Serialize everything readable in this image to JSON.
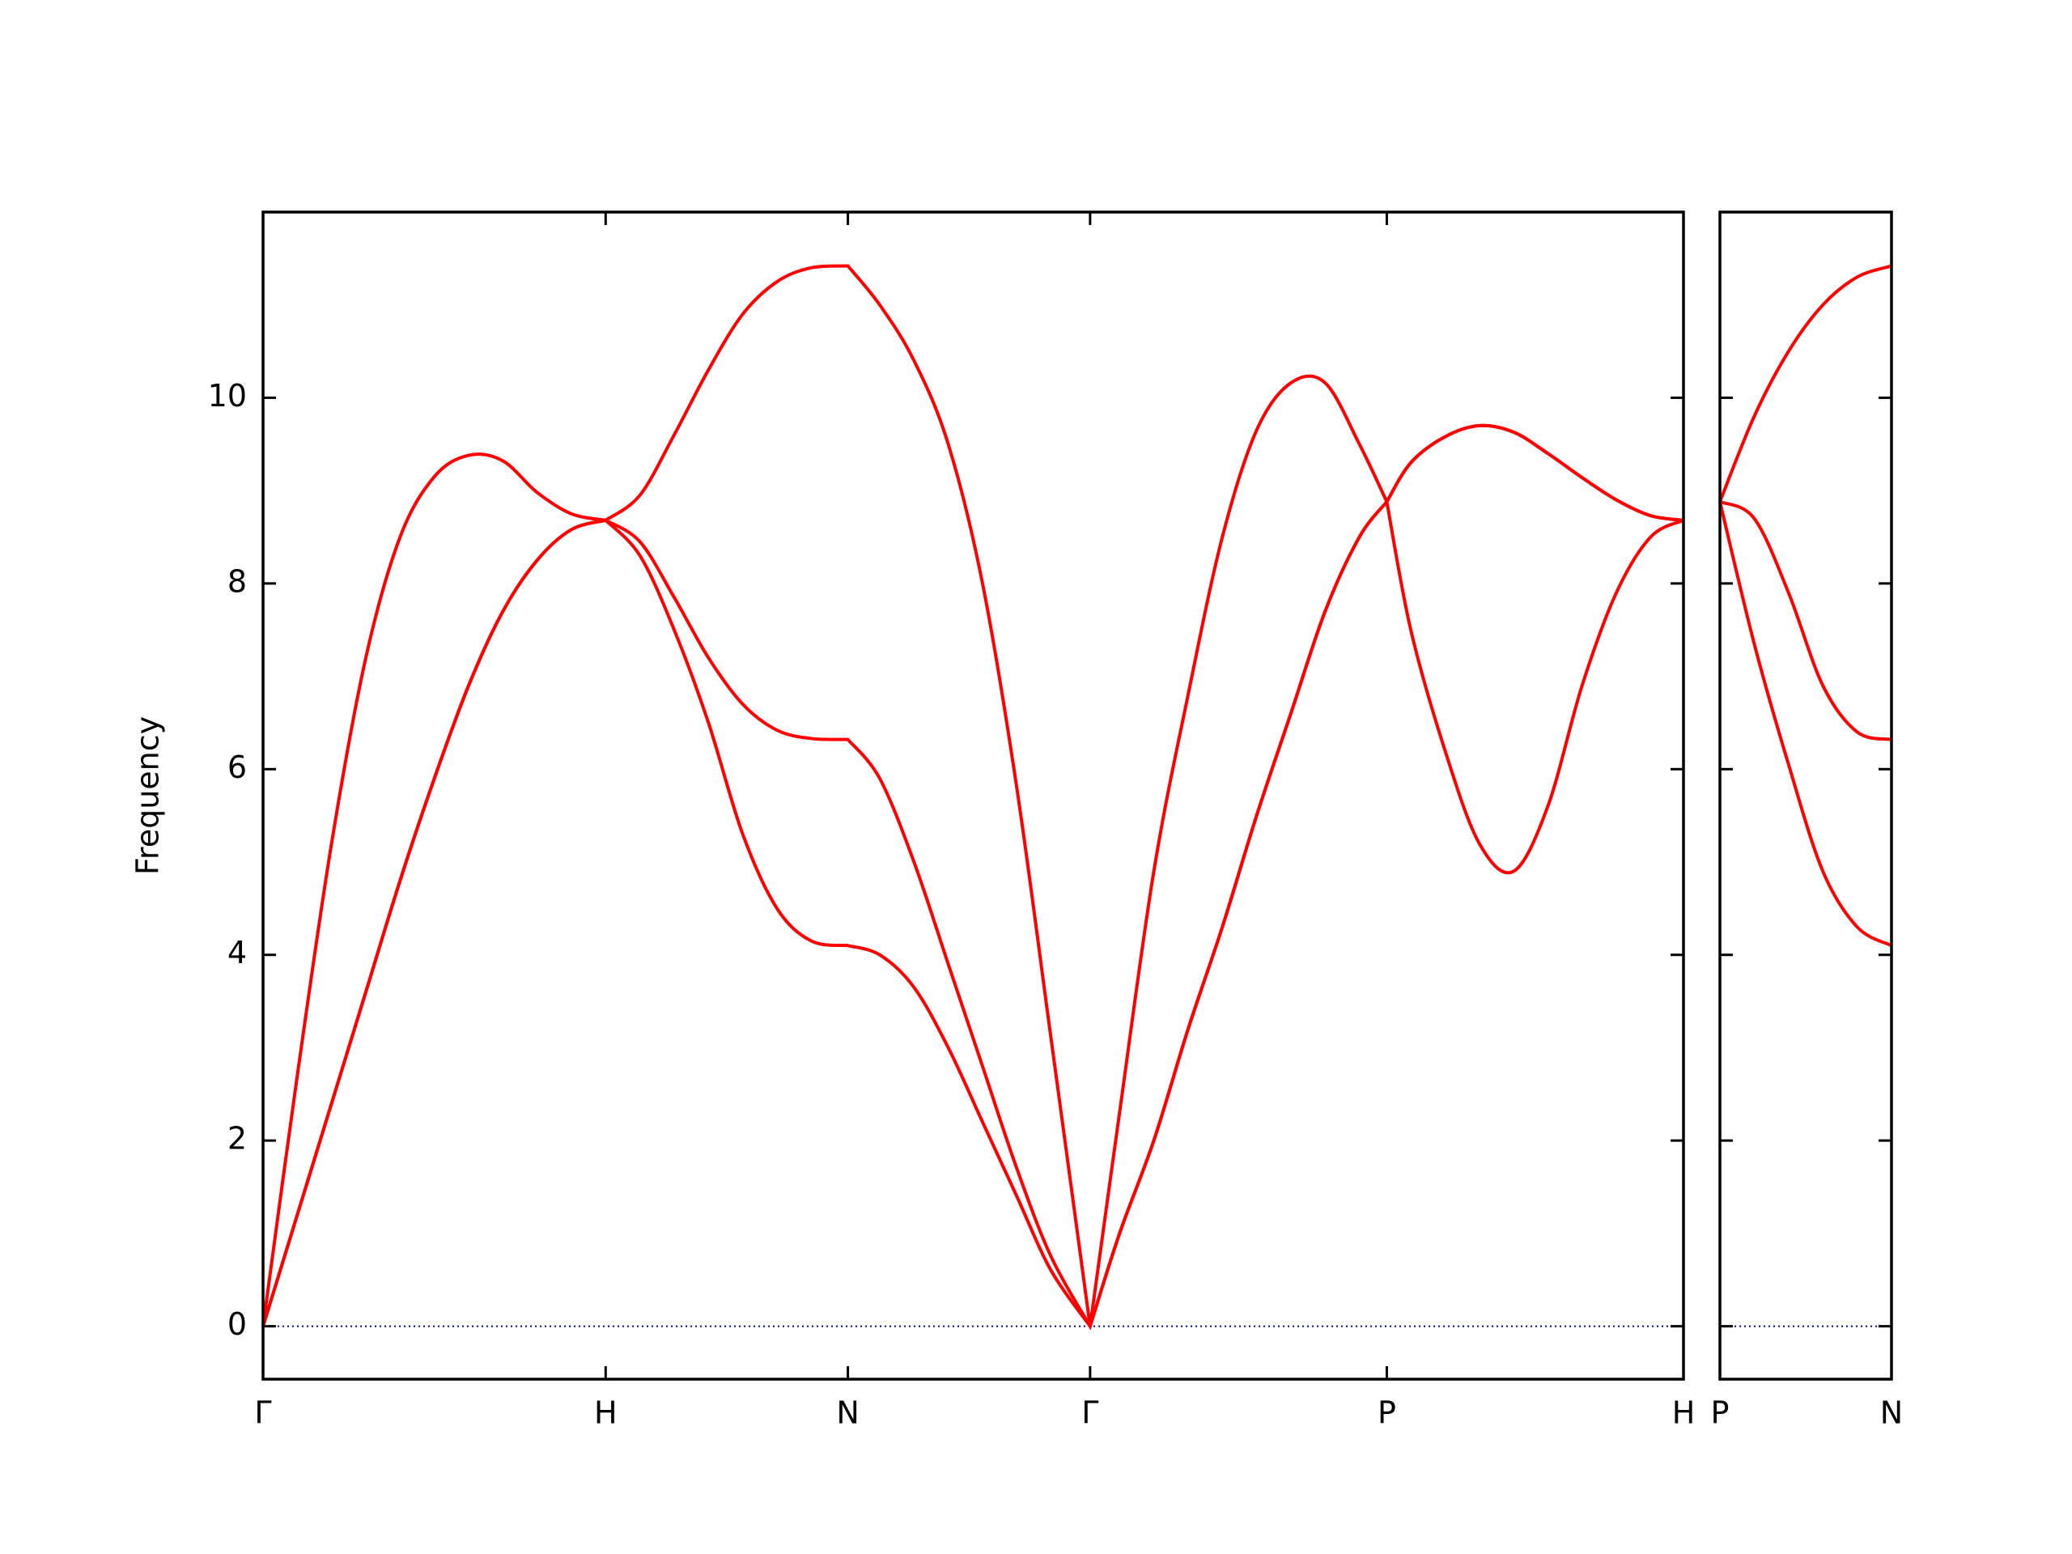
{
  "chart_data": [
    {
      "type": "line",
      "ylabel": "Frequency",
      "xlim": [
        0,
        4.146
      ],
      "ylim": [
        -0.57,
        12
      ],
      "xticks": [
        {
          "value": 0,
          "label": "Γ"
        },
        {
          "value": 1,
          "label": "H"
        },
        {
          "value": 1.707,
          "label": "N"
        },
        {
          "value": 2.414,
          "label": "Γ"
        },
        {
          "value": 3.28,
          "label": "P"
        },
        {
          "value": 4.146,
          "label": "H"
        }
      ],
      "yticks": [
        0,
        2,
        4,
        6,
        8,
        10
      ],
      "ytick_labels": true,
      "hline": 0,
      "hline_color": "#0000cc",
      "x": [
        0,
        0.1,
        0.2,
        0.3,
        0.4,
        0.5,
        0.6,
        0.7,
        0.8,
        0.9,
        1,
        1.1,
        1.2,
        1.3,
        1.4,
        1.5,
        1.6,
        1.707,
        1.8,
        1.9,
        2.0,
        2.1,
        2.2,
        2.3,
        2.414,
        2.5,
        2.6,
        2.7,
        2.8,
        2.9,
        3.0,
        3.1,
        3.2,
        3.28,
        3.35,
        3.45,
        3.55,
        3.65,
        3.75,
        3.85,
        3.95,
        4.05,
        4.146
      ],
      "series": [
        {
          "color": "#ff0000",
          "values": [
            0,
            1.2,
            2.4,
            3.6,
            4.8,
            5.9,
            6.9,
            7.7,
            8.25,
            8.58,
            8.68,
            8.3,
            7.5,
            6.5,
            5.3,
            4.5,
            4.15,
            4.1,
            4.0,
            3.65,
            3.0,
            2.2,
            1.4,
            0.6,
            0,
            1.0,
            2.0,
            3.2,
            4.3,
            5.5,
            6.6,
            7.7,
            8.5,
            8.88,
            9.3,
            9.58,
            9.7,
            9.63,
            9.4,
            9.14,
            8.9,
            8.73,
            8.68
          ]
        },
        {
          "color": "#ff0000",
          "values": [
            0,
            1.2,
            2.4,
            3.6,
            4.8,
            5.9,
            6.9,
            7.7,
            8.25,
            8.58,
            8.68,
            8.45,
            7.85,
            7.2,
            6.7,
            6.42,
            6.33,
            6.32,
            5.9,
            5.0,
            3.9,
            2.8,
            1.7,
            0.75,
            0,
            1.0,
            2.0,
            3.2,
            4.3,
            5.5,
            6.6,
            7.7,
            8.5,
            8.88,
            9.3,
            9.58,
            9.7,
            9.63,
            9.4,
            9.14,
            8.9,
            8.73,
            8.68
          ]
        },
        {
          "color": "#ff0000",
          "values": [
            0,
            2.7,
            5.2,
            7.2,
            8.5,
            9.15,
            9.38,
            9.32,
            8.98,
            8.75,
            8.68,
            8.95,
            9.6,
            10.3,
            10.9,
            11.25,
            11.4,
            11.42,
            11.0,
            10.4,
            9.5,
            8.0,
            5.8,
            3.1,
            0,
            2.3,
            4.9,
            6.8,
            8.5,
            9.65,
            10.16,
            10.16,
            9.5,
            8.88,
            7.5,
            6.2,
            5.2,
            4.9,
            5.6,
            6.9,
            7.9,
            8.5,
            8.68
          ]
        }
      ]
    },
    {
      "type": "line",
      "xlim": [
        0,
        0.5
      ],
      "ylim": [
        -0.57,
        12
      ],
      "xticks": [
        {
          "value": 0,
          "label": "P"
        },
        {
          "value": 0.5,
          "label": "N"
        }
      ],
      "yticks": [
        0,
        2,
        4,
        6,
        8,
        10
      ],
      "ytick_labels": false,
      "hline": 0,
      "hline_color": "#0000cc",
      "x": [
        0,
        0.1,
        0.2,
        0.3,
        0.4,
        0.5
      ],
      "series": [
        {
          "color": "#ff0000",
          "values": [
            8.88,
            7.35,
            6.05,
            4.9,
            4.3,
            4.1
          ]
        },
        {
          "color": "#ff0000",
          "values": [
            8.88,
            8.7,
            7.9,
            6.9,
            6.4,
            6.32
          ]
        },
        {
          "color": "#ff0000",
          "values": [
            8.88,
            9.8,
            10.5,
            11.0,
            11.3,
            11.42
          ]
        }
      ]
    }
  ]
}
